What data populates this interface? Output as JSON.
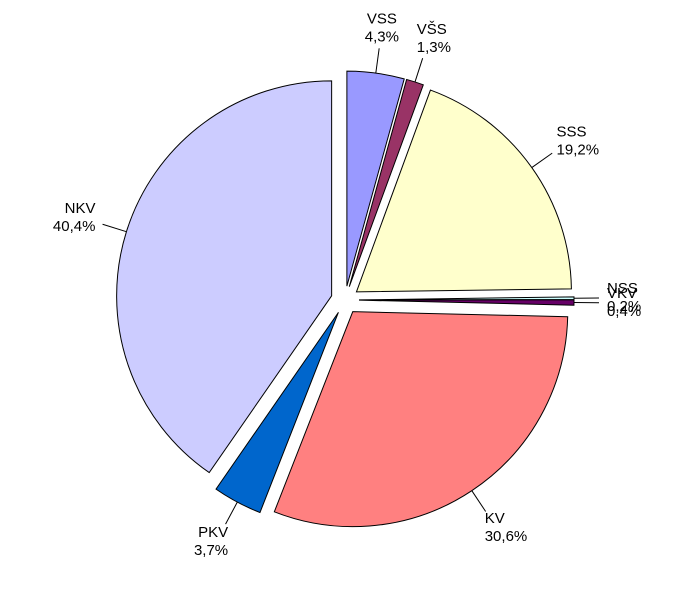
{
  "chart_data": {
    "type": "pie",
    "categories": [
      "VSS",
      "VŠS",
      "SSS",
      "NSS",
      "VKV",
      "KV",
      "PKV",
      "NKV"
    ],
    "values": [
      4.3,
      1.3,
      19.2,
      0.2,
      0.4,
      30.6,
      3.7,
      40.4
    ],
    "value_labels": [
      "4,3%",
      "1,3%",
      "19,2%",
      "0,2%",
      "0,4%",
      "30,6%",
      "3,7%",
      "40,4%"
    ],
    "colors": [
      "#9999ff",
      "#993366",
      "#ffffcc",
      "#ccffff",
      "#660066",
      "#ff8080",
      "#0066cc",
      "#ccccff"
    ]
  }
}
